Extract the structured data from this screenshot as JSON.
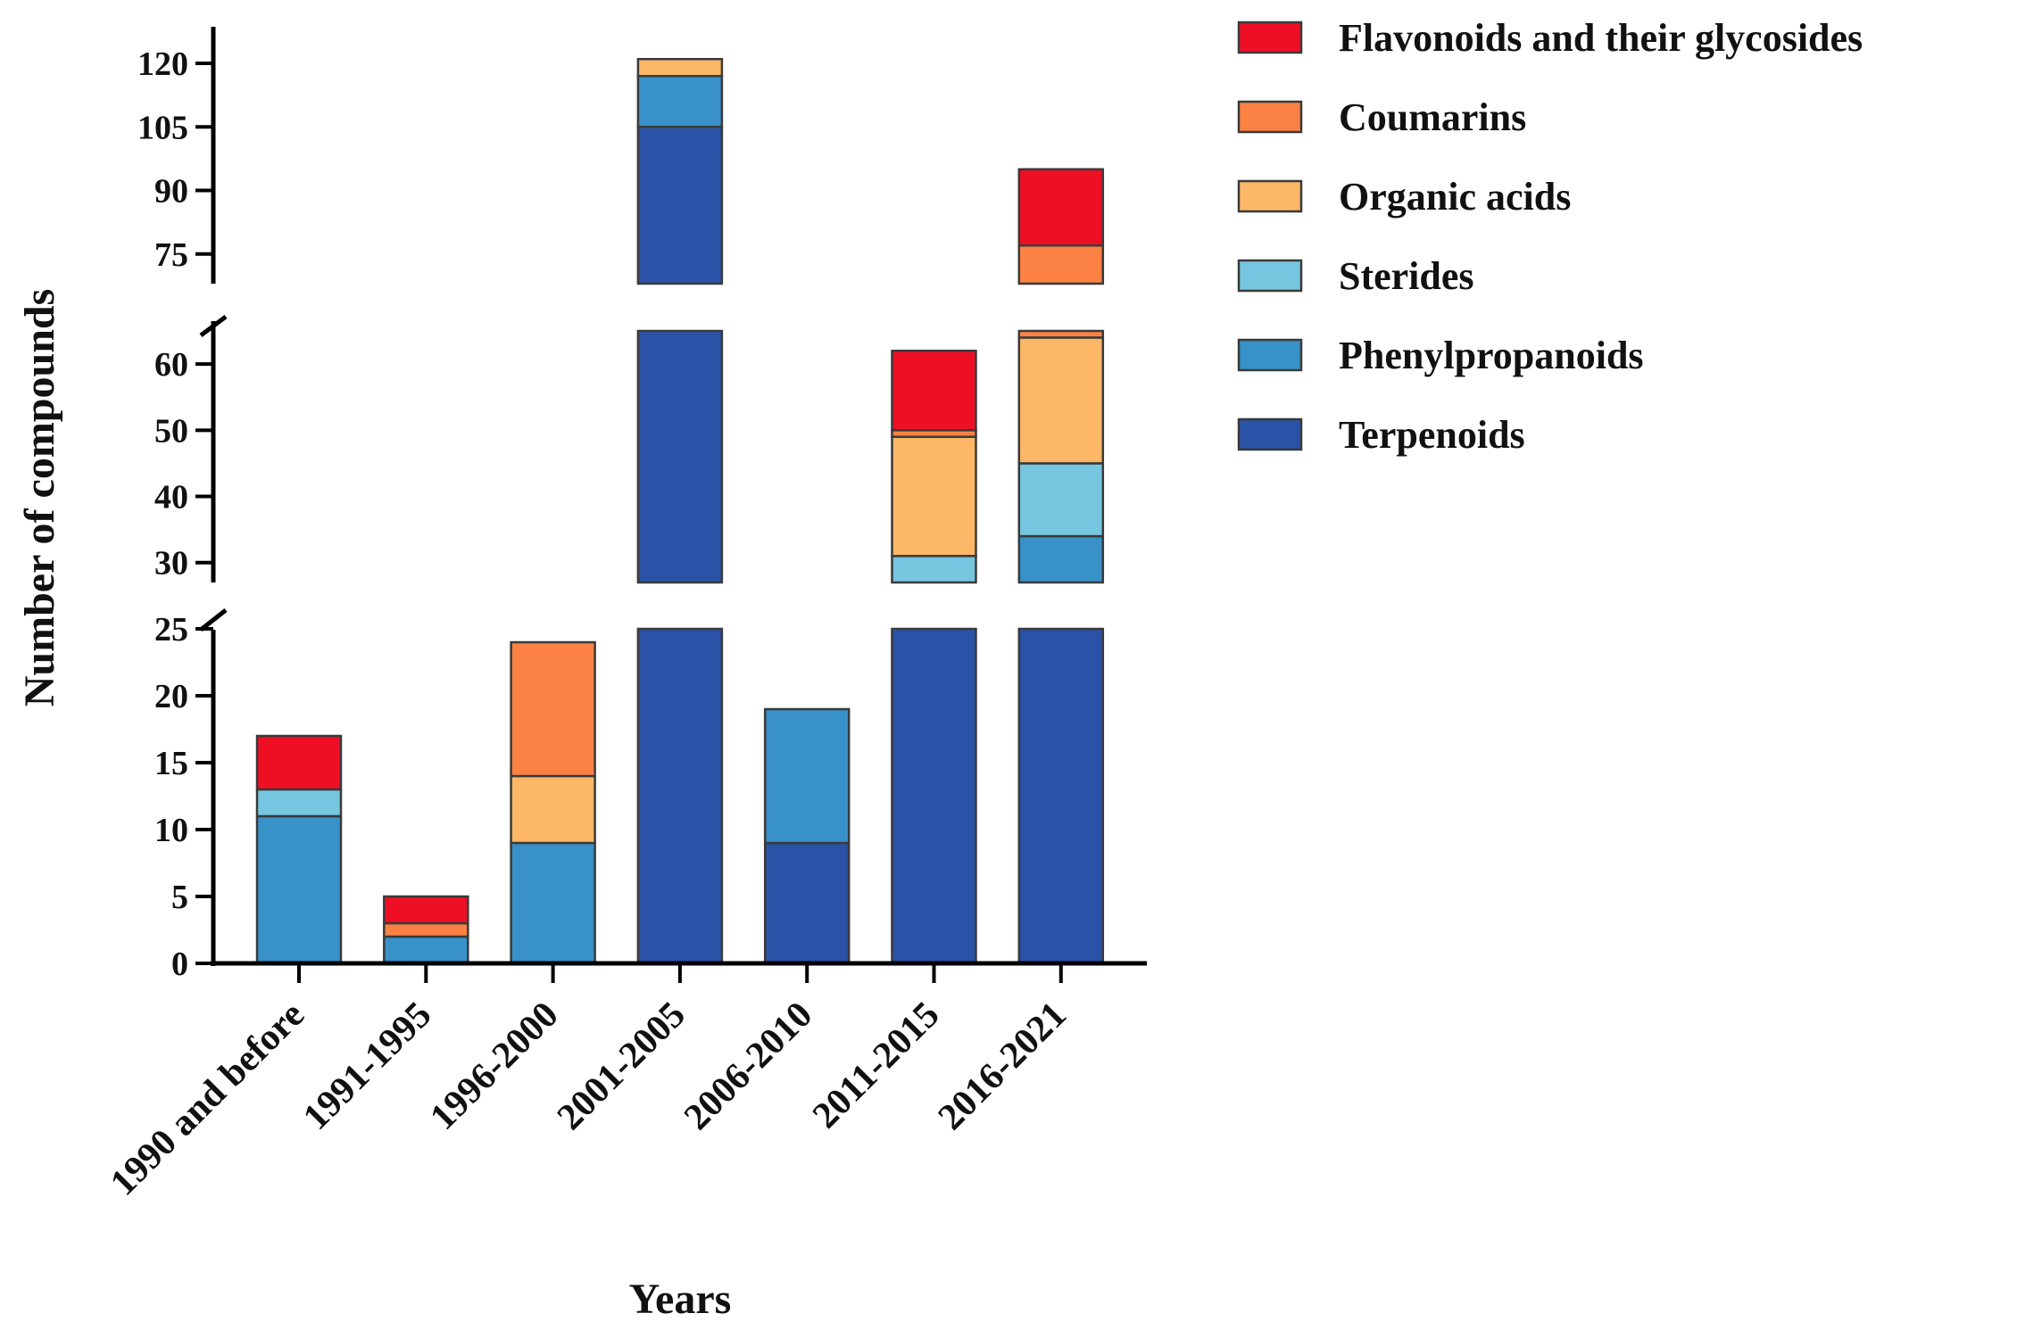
{
  "chart_data": {
    "type": "bar",
    "stacked": true,
    "broken_y_axis": true,
    "xlabel": "Years",
    "ylabel": "Number of compounds",
    "legend_position": "top-right",
    "categories": [
      "1990 and before",
      "1991-1995",
      "1996-2000",
      "2001-2005",
      "2006-2010",
      "2011-2015",
      "2016-2021"
    ],
    "series": [
      {
        "name": "Terpenoids",
        "color": "#2a52a6",
        "values": [
          0,
          0,
          0,
          105,
          9,
          27,
          27
        ]
      },
      {
        "name": "Phenylpropanoids",
        "color": "#3891c8",
        "values": [
          11,
          2,
          9,
          12,
          10,
          0,
          7
        ]
      },
      {
        "name": "Sterides",
        "color": "#76c6e0",
        "values": [
          2,
          0,
          0,
          0,
          0,
          4,
          11
        ]
      },
      {
        "name": "Organic acids",
        "color": "#fcb867",
        "values": [
          0,
          0,
          5,
          4,
          0,
          18,
          19
        ]
      },
      {
        "name": "Coumarins",
        "color": "#fb8244",
        "values": [
          0,
          1,
          10,
          0,
          0,
          1,
          13
        ]
      },
      {
        "name": "Flavonoids and their glycosides",
        "color": "#ee0f25",
        "values": [
          4,
          2,
          0,
          0,
          0,
          12,
          18
        ]
      }
    ],
    "legend_order": [
      "Flavonoids and their glycosides",
      "Coumarins",
      "Organic acids",
      "Sterides",
      "Phenylpropanoids",
      "Terpenoids"
    ],
    "segments": [
      {
        "range": [
          0,
          25
        ],
        "ticks": [
          "0",
          "5",
          "10",
          "15",
          "20",
          "25"
        ]
      },
      {
        "range": [
          27,
          65
        ],
        "ticks": [
          "30",
          "40",
          "50",
          "60"
        ]
      },
      {
        "range": [
          68,
          124
        ],
        "ticks": [
          "75",
          "90",
          "105",
          "120"
        ]
      }
    ]
  }
}
